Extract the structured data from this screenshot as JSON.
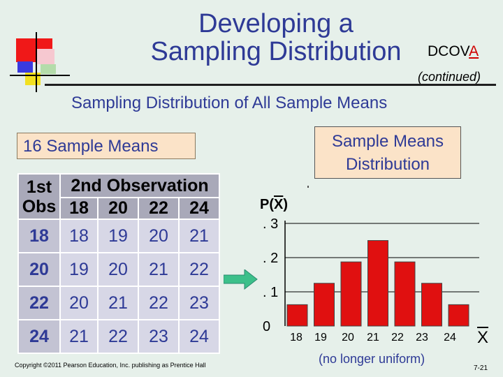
{
  "slide": {
    "title_line1": "Developing a",
    "title_line2": "Sampling Distribution",
    "dcova_prefix": "DCOV",
    "dcova_highlight": "A",
    "continued": "(continued)",
    "subtitle": "Sampling Distribution of All Sample Means",
    "left_box": "16 Sample Means",
    "right_box_line1": "Sample Means",
    "right_box_line2": "Distribution",
    "copyright": "Copyright ©2011 Pearson Education, Inc. publishing as Prentice Hall",
    "page_number": "7-21",
    "note": "(no longer uniform)"
  },
  "table": {
    "corner_line1": "1st",
    "corner_line2": "Obs",
    "header": "2nd Observation",
    "columns": [
      "18",
      "20",
      "22",
      "24"
    ],
    "rows": [
      {
        "label": "18",
        "cells": [
          "18",
          "19",
          "20",
          "21"
        ]
      },
      {
        "label": "20",
        "cells": [
          "19",
          "20",
          "21",
          "22"
        ]
      },
      {
        "label": "22",
        "cells": [
          "20",
          "21",
          "22",
          "23"
        ]
      },
      {
        "label": "24",
        "cells": [
          "21",
          "22",
          "23",
          "24"
        ]
      }
    ]
  },
  "colors": {
    "title_blue": "#2e3a96",
    "bar_red": "#e01010",
    "box_fill": "#fbe3c8",
    "arrow_green": "#3cc08a"
  },
  "chart_data": {
    "type": "bar",
    "ylabel_prefix": "P(",
    "ylabel_symbol": "X",
    "ylabel_suffix": ")",
    "xlabel": "X",
    "yticks": [
      "0",
      ". 1",
      ". 2",
      ". 3"
    ],
    "categories": [
      "18",
      "19",
      "20",
      "21",
      "22",
      "23",
      "24"
    ],
    "values": [
      0.0625,
      0.125,
      0.1875,
      0.25,
      0.1875,
      0.125,
      0.0625
    ],
    "ylim": [
      0,
      0.3
    ],
    "grid": true
  }
}
